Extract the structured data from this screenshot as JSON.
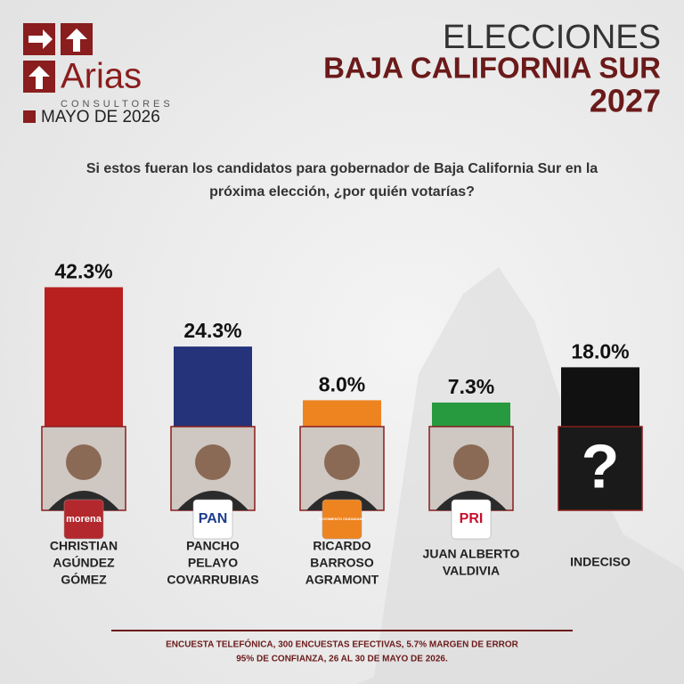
{
  "header": {
    "brand": "Arias",
    "brand_sub": "CONSULTORES",
    "date": "MAYO DE 2026",
    "title_1": "ELECCIONES",
    "title_2": "BAJA CALIFORNIA SUR",
    "title_3": "2027"
  },
  "question": [
    "Si estos fueran los candidatos para gobernador de Baja California Sur en la",
    "próxima elección, ¿por quién votarías?"
  ],
  "chart_data": {
    "type": "bar",
    "categories": [
      [
        "CHRISTIAN",
        "AGÚNDEZ",
        "GÓMEZ"
      ],
      [
        "PANCHO",
        "PELAYO",
        "COVARRUBIAS"
      ],
      [
        "RICARDO",
        "BARROSO",
        "AGRAMONT"
      ],
      [
        "JUAN ALBERTO",
        "VALDIVIA"
      ],
      [
        "INDECISO"
      ]
    ],
    "values": [
      42.3,
      24.3,
      8.0,
      7.3,
      18.0
    ],
    "value_labels": [
      "42.3%",
      "24.3%",
      "8.0%",
      "7.3%",
      "18.0%"
    ],
    "colors": [
      "#b8201f",
      "#24337a",
      "#ee8420",
      "#279a3f",
      "#111111"
    ],
    "parties": [
      "morena",
      "PAN",
      "MOVIMIENTO CIUDADANO",
      "PRI",
      null
    ],
    "undecided_mark": "?"
  },
  "footer": [
    "ENCUESTA TELEFÓNICA, 300 ENCUESTAS EFECTIVAS, 5.7%  MARGEN DE ERROR",
    "95% DE CONFIANZA, 26 AL 30 DE MAYO DE 2026."
  ]
}
